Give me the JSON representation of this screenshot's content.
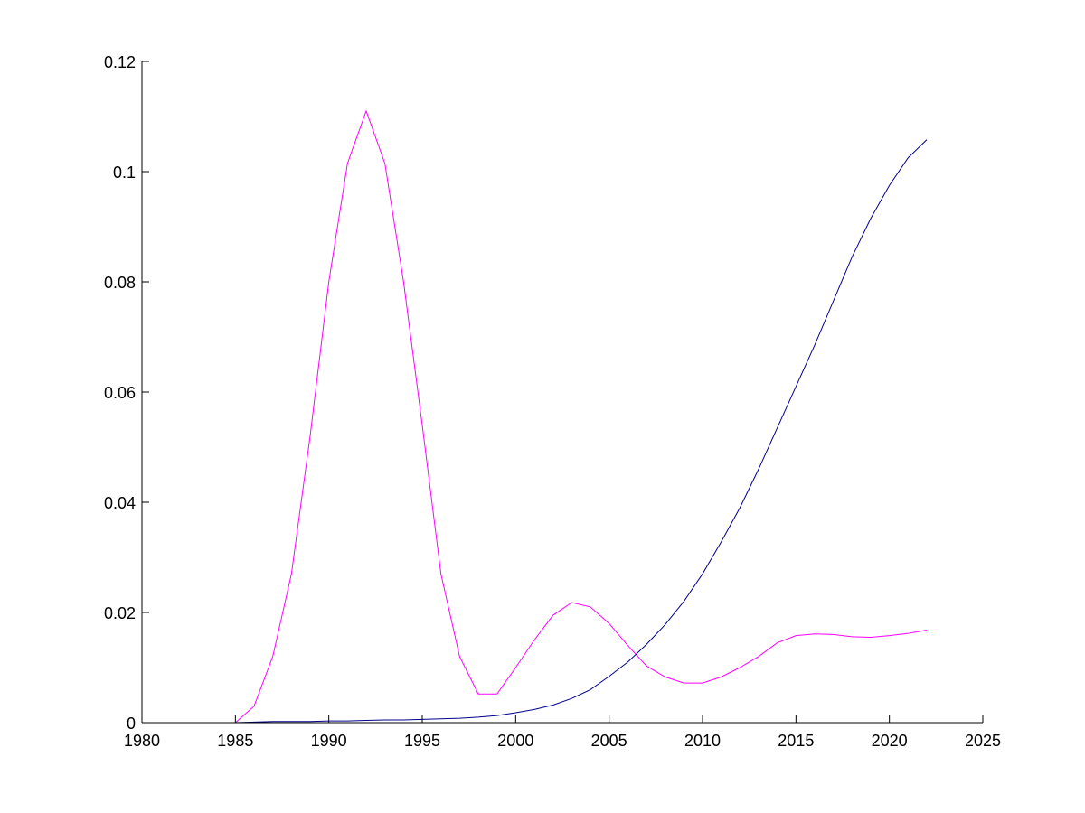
{
  "chart_data": {
    "type": "line",
    "title": "",
    "xlabel": "",
    "ylabel": "",
    "xlim": [
      1980,
      2025
    ],
    "ylim": [
      0,
      0.12
    ],
    "grid": false,
    "xticks": [
      {
        "value": 1980,
        "label": "1980"
      },
      {
        "value": 1985,
        "label": "1985"
      },
      {
        "value": 1990,
        "label": "1990"
      },
      {
        "value": 1995,
        "label": "1995"
      },
      {
        "value": 2000,
        "label": "2000"
      },
      {
        "value": 2005,
        "label": "2005"
      },
      {
        "value": 2010,
        "label": "2010"
      },
      {
        "value": 2015,
        "label": "2015"
      },
      {
        "value": 2020,
        "label": "2020"
      },
      {
        "value": 2025,
        "label": "2025"
      }
    ],
    "yticks": [
      {
        "value": 0,
        "label": "0"
      },
      {
        "value": 0.02,
        "label": "0.02"
      },
      {
        "value": 0.04,
        "label": "0.04"
      },
      {
        "value": 0.06,
        "label": "0.06"
      },
      {
        "value": 0.08,
        "label": "0.08"
      },
      {
        "value": 0.1,
        "label": "0.1"
      },
      {
        "value": 0.12,
        "label": "0.12"
      }
    ],
    "x": [
      1980,
      1981,
      1982,
      1983,
      1984,
      1985,
      1986,
      1987,
      1988,
      1989,
      1990,
      1991,
      1992,
      1993,
      1994,
      1995,
      1996,
      1997,
      1998,
      1999,
      2000,
      2001,
      2002,
      2003,
      2004,
      2005,
      2006,
      2007,
      2008,
      2009,
      2010,
      2011,
      2012,
      2013,
      2014,
      2015,
      2016,
      2017,
      2018,
      2019,
      2020,
      2021,
      2022
    ],
    "series": [
      {
        "color": "#ff00ff",
        "values": [
          0,
          0,
          0,
          0,
          0,
          0,
          0.003,
          0.012,
          0.027,
          0.052,
          0.08,
          0.1015,
          0.111,
          0.1015,
          0.08,
          0.054,
          0.027,
          0.012,
          0.0052,
          0.0052,
          0.01,
          0.015,
          0.0195,
          0.0218,
          0.021,
          0.018,
          0.014,
          0.0103,
          0.0083,
          0.0072,
          0.0072,
          0.0083,
          0.01,
          0.012,
          0.0145,
          0.0158,
          0.0161,
          0.016,
          0.0156,
          0.0155,
          0.0158,
          0.0162,
          0.0168
        ]
      },
      {
        "color": "#00008b",
        "values": [
          0,
          0,
          0,
          0,
          0,
          0,
          0.0001,
          0.0002,
          0.0002,
          0.0002,
          0.0003,
          0.0003,
          0.0004,
          0.0005,
          0.0005,
          0.0006,
          0.0007,
          0.0008,
          0.001,
          0.0013,
          0.0018,
          0.0024,
          0.0032,
          0.0044,
          0.006,
          0.0084,
          0.011,
          0.0142,
          0.0178,
          0.022,
          0.027,
          0.0328,
          0.039,
          0.046,
          0.0535,
          0.061,
          0.0685,
          0.0765,
          0.0845,
          0.0915,
          0.0975,
          0.1025,
          0.1058
        ]
      }
    ]
  }
}
